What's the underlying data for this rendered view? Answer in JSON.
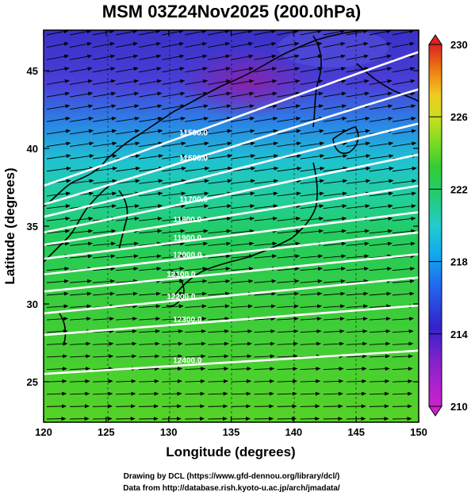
{
  "title": "MSM 03Z24Nov2025 (200.0hPa)",
  "xlabel": "Longitude (degrees)",
  "ylabel": "Latitude  (degrees)",
  "credit_line1": "Drawing by DCL (https://www.gfd-dennou.org/library/dcl/)",
  "credit_line2": "Data from http://database.rish.kyoto-u.ac.jp/arch/jmadata/",
  "chart_data": {
    "type": "heatmap",
    "title": "MSM 03Z24Nov2025 (200.0hPa)",
    "xlabel": "Longitude (degrees)",
    "ylabel": "Latitude  (degrees)",
    "xlim": [
      120,
      150
    ],
    "ylim": [
      22.4,
      47.6
    ],
    "xticks": [
      120,
      125,
      130,
      135,
      140,
      145,
      150
    ],
    "yticks": [
      25,
      30,
      35,
      40,
      45
    ],
    "colorbar": {
      "min": 210,
      "max": 230,
      "ticks": [
        210,
        214,
        218,
        222,
        226,
        230
      ],
      "colors": [
        "#cc22cc",
        "#3322cc",
        "#1188ee",
        "#22cccc",
        "#22cc55",
        "#55dd22",
        "#aadd22",
        "#ddcc22",
        "#ee8811",
        "#dd2222"
      ]
    },
    "temperature_field": [
      {
        "lat": 46,
        "value": 214.5
      },
      {
        "lat": 44,
        "value": 215.5
      },
      {
        "lat": 42,
        "value": 217
      },
      {
        "lat": 40,
        "value": 219
      },
      {
        "lat": 38,
        "value": 220.5
      },
      {
        "lat": 35,
        "value": 221.5
      },
      {
        "lat": 32,
        "value": 222
      },
      {
        "lat": 29,
        "value": 222.3
      },
      {
        "lat": 26,
        "value": 222.5
      },
      {
        "lat": 23,
        "value": 222.6
      }
    ],
    "contours": [
      {
        "label": "11500.0",
        "lat_west": 37.6,
        "lat_east": 46.2,
        "label_lon": 132.0
      },
      {
        "label": "11600.0",
        "lat_west": 36.4,
        "lat_east": 43.8,
        "label_lon": 132.0
      },
      {
        "label": "",
        "lat_west": 35.6,
        "lat_east": 41.6,
        "label_lon": null
      },
      {
        "label": "11700.0",
        "lat_west": 34.6,
        "lat_east": 39.6,
        "label_lon": 132.0
      },
      {
        "label": "11800.0",
        "lat_west": 33.8,
        "lat_east": 37.6,
        "label_lon": 131.5
      },
      {
        "label": "11900.0",
        "lat_west": 32.9,
        "lat_east": 35.9,
        "label_lon": 131.5
      },
      {
        "label": "12000.0",
        "lat_west": 31.9,
        "lat_east": 34.6,
        "label_lon": 131.5
      },
      {
        "label": "12100.0",
        "lat_west": 30.8,
        "lat_east": 33.2,
        "label_lon": 131.0
      },
      {
        "label": "12200.0",
        "lat_west": 29.4,
        "lat_east": 31.7,
        "label_lon": 131.0
      },
      {
        "label": "12300.0",
        "lat_west": 28.0,
        "lat_east": 29.9,
        "label_lon": 131.5
      },
      {
        "label": "12400.0",
        "lat_west": 25.5,
        "lat_east": 27.0,
        "label_lon": 131.5
      }
    ],
    "wind_direction": "westerly"
  }
}
